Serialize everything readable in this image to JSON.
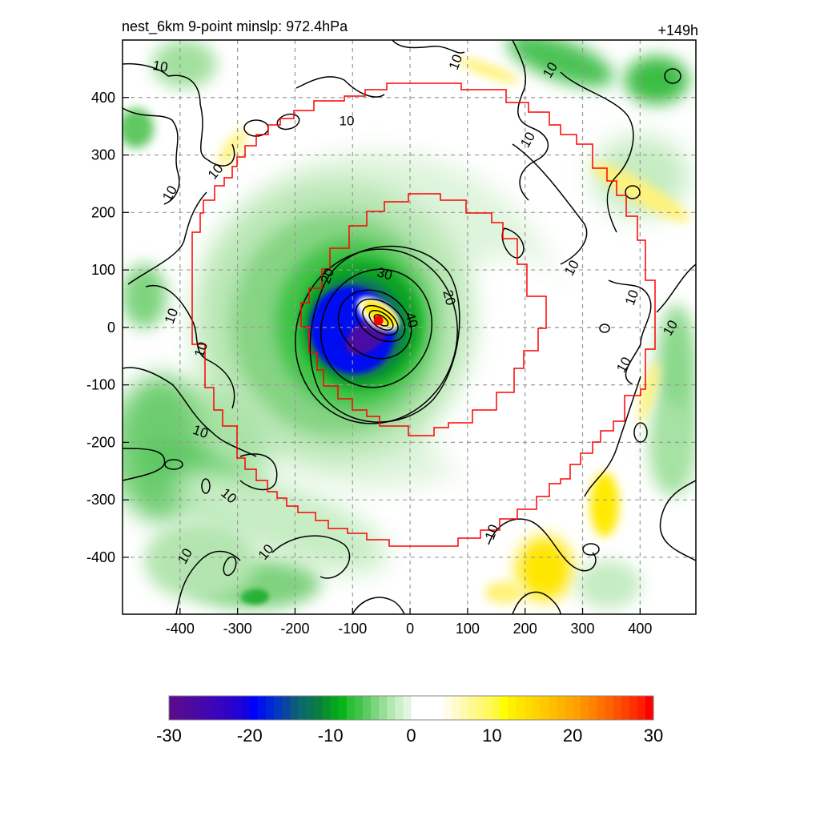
{
  "chart_data": {
    "type": "heatmap",
    "title": "nest_6km  9-point minslp: 972.4hPa",
    "time_label": "+149h",
    "xlabel": "",
    "ylabel": "",
    "xlim": [
      -500,
      497
    ],
    "ylim": [
      -499,
      500
    ],
    "x_ticks": [
      -400,
      -300,
      -200,
      -100,
      0,
      100,
      200,
      300,
      400
    ],
    "y_ticks": [
      400,
      300,
      200,
      100,
      0,
      -100,
      -200,
      -300,
      -400
    ],
    "x_tick_labels": [
      "-400",
      "-300",
      "-200",
      "-100",
      "0",
      "100",
      "200",
      "300",
      "400"
    ],
    "y_tick_labels": [
      "400",
      "300",
      "200",
      "100",
      "0",
      "-100",
      "-200",
      "-300",
      "-400"
    ],
    "grid": true,
    "colorbar": {
      "min": -30,
      "max": 30,
      "step": 1,
      "tick_labels": [
        "-30",
        "-20",
        "-10",
        "0",
        "10",
        "20",
        "30"
      ],
      "placement": "bottom",
      "colors": [
        "#5a0a8c",
        "#560a96",
        "#4f0a9c",
        "#4a08a6",
        "#4406b0",
        "#3d05b8",
        "#3504c0",
        "#2c03c8",
        "#2202d4",
        "#1401e0",
        "#0000ff",
        "#0014ea",
        "#0026d8",
        "#0538c0",
        "#0a46a0",
        "#0c5a80",
        "#0b6a6a",
        "#0a7456",
        "#0a7e3e",
        "#08922a",
        "#05a51f",
        "#08b418",
        "#2abf36",
        "#3ec549",
        "#5ccc62",
        "#7ad57d",
        "#96de95",
        "#b4e8b1",
        "#cdf0cb",
        "#e1f6df",
        "#ffffff",
        "#ffffff",
        "#ffffff",
        "#ffffff",
        "#fffde6",
        "#fffbcc",
        "#fffab0",
        "#fff994",
        "#fff878",
        "#fff85e",
        "#fff83c",
        "#ffff00",
        "#fff000",
        "#ffe600",
        "#ffdc00",
        "#ffd200",
        "#ffc800",
        "#ffbe00",
        "#ffb400",
        "#ffaa00",
        "#ffa000",
        "#ff9000",
        "#ff8200",
        "#ff7200",
        "#ff6200",
        "#ff5200",
        "#ff4200",
        "#ff3000",
        "#ff1e00",
        "#ff0000"
      ]
    },
    "contour_labels": [
      "10",
      "10",
      "10",
      "10",
      "10",
      "10",
      "10",
      "10",
      "10",
      "10",
      "10",
      "10",
      "10",
      "10",
      "10",
      "10",
      "10",
      "10",
      "20",
      "20",
      "30",
      "40"
    ],
    "storm_center": {
      "x": -55,
      "y": 12
    },
    "accent_colors": {
      "boundary": "#ff0000",
      "contour": "#000000",
      "grid": "#999999",
      "center": "#ff0000"
    }
  }
}
